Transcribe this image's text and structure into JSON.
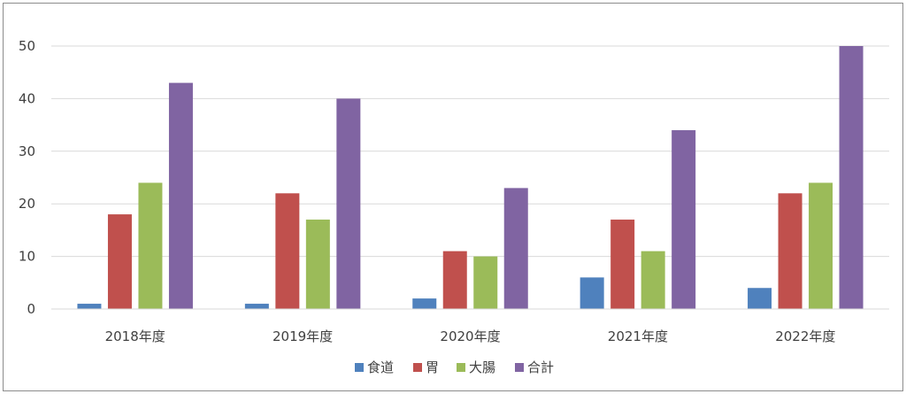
{
  "chart_data": {
    "type": "bar",
    "title": "",
    "xlabel": "",
    "ylabel": "",
    "categories": [
      "2018年度",
      "2019年度",
      "2020年度",
      "2021年度",
      "2022年度"
    ],
    "series": [
      {
        "name": "食道",
        "color": "#4f81bd",
        "values": [
          1,
          1,
          2,
          6,
          4
        ]
      },
      {
        "name": "胃",
        "color": "#c0504d",
        "values": [
          18,
          22,
          11,
          17,
          22
        ]
      },
      {
        "name": "大腸",
        "color": "#9bbb59",
        "values": [
          24,
          17,
          10,
          11,
          24
        ]
      },
      {
        "name": "合計",
        "color": "#8064a2",
        "values": [
          43,
          40,
          23,
          34,
          50
        ]
      }
    ],
    "ylim": [
      0,
      50
    ],
    "yticks": [
      0,
      10,
      20,
      30,
      40,
      50
    ],
    "grid": true,
    "legend_position": "bottom"
  }
}
